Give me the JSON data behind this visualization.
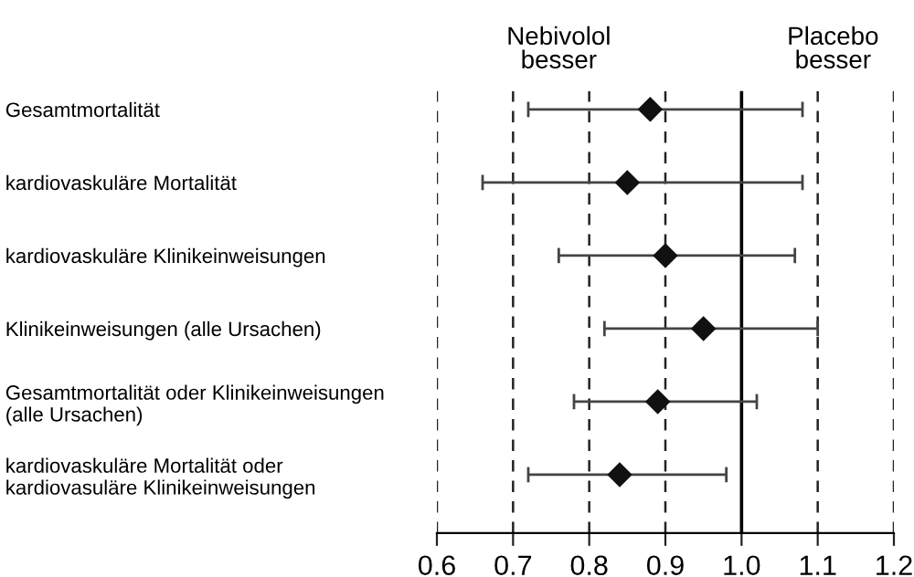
{
  "chart_data": {
    "type": "scatter",
    "orientation": "horizontal",
    "categories": [
      "Gesamtmortalität",
      "kardiovaskuläre Mortalität",
      "kardiovaskuläre Klinikeinweisungen",
      "Klinikeinweisungen (alle Ursachen)",
      "Gesamtmortalität oder Klinikeinweisungen\n(alle Ursachen)",
      "kardiovaskuläre Mortalität oder\nkardiovasuläre Klinikeinweisungen"
    ],
    "values": [
      0.88,
      0.85,
      0.9,
      0.95,
      0.89,
      0.84
    ],
    "errors": [
      [
        0.72,
        1.08
      ],
      [
        0.66,
        1.08
      ],
      [
        0.76,
        1.07
      ],
      [
        0.82,
        1.1
      ],
      [
        0.78,
        1.02
      ],
      [
        0.72,
        0.98
      ]
    ],
    "color": "#111111",
    "marker": "diamond",
    "xlim": [
      0.6,
      1.2
    ],
    "xticks": [
      {
        "value": 0.6,
        "label": "0.6"
      },
      {
        "value": 0.7,
        "label": "0.7"
      },
      {
        "value": 0.8,
        "label": "0.8"
      },
      {
        "value": 0.9,
        "label": "0.9"
      },
      {
        "value": 1.0,
        "label": "1.0"
      },
      {
        "value": 1.1,
        "label": "1.1"
      },
      {
        "value": 1.2,
        "label": "1.2"
      }
    ],
    "grid": "x",
    "ref_lines": [
      {
        "axis": "x",
        "value": 1.0,
        "color": "#000000",
        "line_style": "solid"
      }
    ],
    "annotations": [
      "Nebivolol\nbesser",
      "Placebo\nbesser"
    ]
  }
}
